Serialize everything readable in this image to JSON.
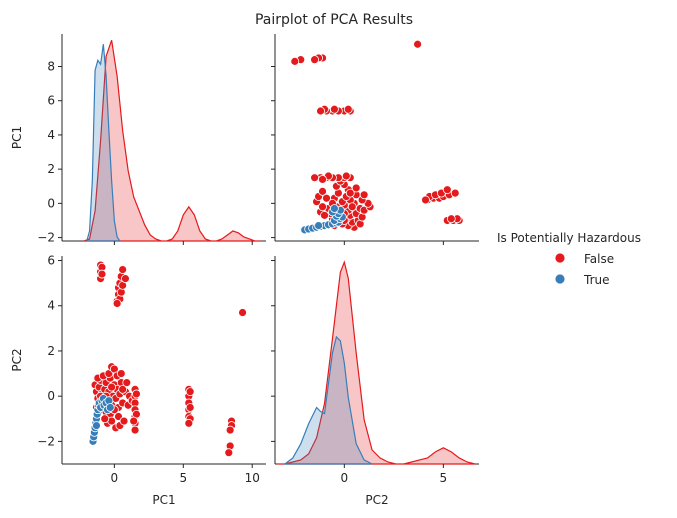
{
  "chart_data": {
    "type": "scatter",
    "title": "Pairplot of PCA Results",
    "variables": [
      "PC1",
      "PC2"
    ],
    "hue": "Is Potentially Hazardous",
    "legend": {
      "title": "Is Potentially Hazardous",
      "placement": "center-right",
      "entries": [
        {
          "label": "False",
          "color": "#e41a1c"
        },
        {
          "label": "True",
          "color": "#377eb8"
        }
      ]
    },
    "axes": {
      "PC1": {
        "lim": [
          -3.8,
          11.0
        ],
        "ticks": [
          0,
          5,
          10
        ],
        "diag_ticks": [
          -2,
          0,
          2,
          4,
          6,
          8
        ],
        "label": "PC1"
      },
      "PC2": {
        "lim": [
          -3.0,
          6.2
        ],
        "ticks": [
          -2,
          0,
          2,
          4,
          6
        ],
        "diag_ticks": [
          0,
          5
        ],
        "label": "PC2"
      },
      "PC2_x": {
        "lim": [
          -3.5,
          6.8
        ],
        "ticks": [
          0,
          5
        ],
        "label": "PC2"
      },
      "PC1_y": {
        "lim": [
          -2.2,
          9.9
        ],
        "ticks": [
          -2,
          0,
          2,
          4,
          6,
          8
        ],
        "label": "PC1"
      }
    },
    "grid": false,
    "series": [
      {
        "name": "False",
        "color": "#e41a1c",
        "points": [
          [
            -1.4,
            0.5
          ],
          [
            -1.3,
            0.2
          ],
          [
            -1.2,
            -0.1
          ],
          [
            -1.1,
            0.4
          ],
          [
            -1.0,
            0.7
          ],
          [
            -0.9,
            0.1
          ],
          [
            -0.8,
            -0.3
          ],
          [
            -0.7,
            0.3
          ],
          [
            -0.6,
            0.6
          ],
          [
            -0.5,
            -0.2
          ],
          [
            -0.4,
            0.2
          ],
          [
            -0.3,
            0.8
          ],
          [
            -0.2,
            -0.4
          ],
          [
            -0.1,
            0.0
          ],
          [
            0.0,
            0.5
          ],
          [
            0.1,
            -0.1
          ],
          [
            0.2,
            0.3
          ],
          [
            0.3,
            -0.5
          ],
          [
            0.4,
            0.1
          ],
          [
            0.5,
            0.6
          ],
          [
            -1.3,
            -0.5
          ],
          [
            -1.1,
            -0.4
          ],
          [
            -0.9,
            -0.6
          ],
          [
            -0.6,
            -0.7
          ],
          [
            -0.3,
            -0.8
          ],
          [
            0.0,
            -0.6
          ],
          [
            0.3,
            -0.9
          ],
          [
            0.6,
            -0.3
          ],
          [
            0.8,
            0.2
          ],
          [
            1.0,
            -0.4
          ],
          [
            -1.2,
            0.8
          ],
          [
            -0.8,
            0.9
          ],
          [
            -0.4,
            1.0
          ],
          [
            -0.2,
            1.3
          ],
          [
            0.0,
            1.2
          ],
          [
            0.2,
            0.9
          ],
          [
            0.5,
            1.0
          ],
          [
            0.9,
            0.6
          ],
          [
            1.1,
            0.0
          ],
          [
            1.3,
            -0.2
          ],
          [
            -0.5,
            -1.2
          ],
          [
            -0.2,
            -1.1
          ],
          [
            0.1,
            -1.4
          ],
          [
            0.4,
            -1.3
          ],
          [
            -0.7,
            -1.0
          ],
          [
            0.7,
            -1.1
          ],
          [
            -1.0,
            0.0
          ],
          [
            -0.6,
            0.0
          ],
          [
            -0.2,
            0.4
          ],
          [
            0.6,
            0.3
          ],
          [
            1.5,
            0.3
          ],
          [
            1.5,
            0.0
          ],
          [
            1.5,
            -0.3
          ],
          [
            1.5,
            -0.6
          ],
          [
            1.5,
            -0.9
          ],
          [
            1.5,
            -1.2
          ],
          [
            1.5,
            -1.5
          ],
          [
            1.6,
            0.1
          ],
          [
            1.6,
            -0.8
          ],
          [
            1.4,
            -1.1
          ],
          [
            -1.0,
            5.8
          ],
          [
            -1.0,
            5.5
          ],
          [
            -1.0,
            5.2
          ],
          [
            -0.9,
            5.7
          ],
          [
            -0.9,
            5.4
          ],
          [
            0.2,
            4.2
          ],
          [
            0.3,
            4.5
          ],
          [
            0.3,
            4.8
          ],
          [
            0.4,
            5.0
          ],
          [
            0.4,
            4.3
          ],
          [
            0.5,
            5.3
          ],
          [
            0.5,
            4.6
          ],
          [
            0.6,
            5.6
          ],
          [
            0.6,
            4.9
          ],
          [
            0.8,
            5.2
          ],
          [
            0.2,
            4.1
          ],
          [
            5.4,
            0.3
          ],
          [
            5.4,
            0.0
          ],
          [
            5.4,
            -0.3
          ],
          [
            5.4,
            -0.6
          ],
          [
            5.4,
            -0.9
          ],
          [
            5.5,
            0.2
          ],
          [
            5.5,
            -0.5
          ],
          [
            5.5,
            -1.0
          ],
          [
            5.4,
            -1.2
          ],
          [
            8.5,
            -1.1
          ],
          [
            8.5,
            -1.3
          ],
          [
            8.4,
            -1.5
          ],
          [
            8.4,
            -2.2
          ],
          [
            8.3,
            -2.5
          ],
          [
            9.3,
            3.7
          ]
        ]
      },
      {
        "name": "True",
        "color": "#377eb8",
        "points": [
          [
            -1.55,
            -2.0
          ],
          [
            -1.5,
            -1.8
          ],
          [
            -1.45,
            -1.6
          ],
          [
            -1.4,
            -1.4
          ],
          [
            -1.35,
            -1.2
          ],
          [
            -1.3,
            -1.0
          ],
          [
            -1.25,
            -0.8
          ],
          [
            -1.2,
            -0.6
          ],
          [
            -1.15,
            -0.4
          ],
          [
            -1.1,
            -0.3
          ],
          [
            -1.0,
            -0.5
          ],
          [
            -0.9,
            -0.2
          ],
          [
            -0.8,
            -0.1
          ],
          [
            -0.75,
            -0.4
          ],
          [
            -0.6,
            -0.3
          ],
          [
            -0.5,
            -0.6
          ],
          [
            -0.4,
            -0.2
          ],
          [
            -0.3,
            -0.5
          ],
          [
            -1.3,
            -1.3
          ]
        ]
      }
    ],
    "kde": {
      "PC1": {
        "False": {
          "x": [
            -2.2,
            -1.8,
            -1.4,
            -1.0,
            -0.6,
            -0.2,
            0.2,
            0.6,
            1.0,
            1.4,
            1.8,
            2.2,
            2.6,
            3.0,
            3.4,
            3.8,
            4.2,
            4.6,
            5.0,
            5.4,
            5.8,
            6.2,
            6.6,
            7.0,
            7.4,
            7.8,
            8.2,
            8.6,
            9.0,
            9.4,
            9.8,
            10.2,
            10.6
          ],
          "density": [
            0.0,
            0.01,
            0.15,
            0.5,
            0.92,
            1.0,
            0.82,
            0.55,
            0.35,
            0.22,
            0.15,
            0.08,
            0.03,
            0.01,
            0.0,
            0.0,
            0.01,
            0.05,
            0.13,
            0.17,
            0.13,
            0.05,
            0.01,
            0.0,
            0.0,
            0.01,
            0.03,
            0.05,
            0.04,
            0.02,
            0.01,
            0.0,
            0.0
          ]
        },
        "True": {
          "x": [
            -2.0,
            -1.8,
            -1.6,
            -1.4,
            -1.2,
            -1.0,
            -0.8,
            -0.6,
            -0.4,
            -0.2,
            0.0,
            0.2,
            0.4
          ],
          "density": [
            0.0,
            0.05,
            0.3,
            0.85,
            0.9,
            0.88,
            0.98,
            0.82,
            0.55,
            0.3,
            0.1,
            0.02,
            0.0
          ]
        }
      },
      "PC2": {
        "False": {
          "x": [
            -3.4,
            -3.0,
            -2.6,
            -2.2,
            -1.8,
            -1.4,
            -1.0,
            -0.6,
            -0.2,
            0.0,
            0.2,
            0.6,
            1.0,
            1.4,
            1.8,
            2.2,
            2.6,
            3.0,
            3.4,
            3.8,
            4.2,
            4.6,
            5.0,
            5.4,
            5.8,
            6.2,
            6.6
          ],
          "density": [
            0.0,
            0.0,
            0.01,
            0.02,
            0.05,
            0.13,
            0.3,
            0.62,
            0.95,
            1.0,
            0.92,
            0.55,
            0.22,
            0.07,
            0.03,
            0.01,
            0.0,
            0.0,
            0.01,
            0.02,
            0.03,
            0.06,
            0.08,
            0.06,
            0.03,
            0.01,
            0.0
          ]
        },
        "True": {
          "x": [
            -3.0,
            -2.6,
            -2.2,
            -1.8,
            -1.4,
            -1.2,
            -1.0,
            -0.8,
            -0.6,
            -0.4,
            -0.2,
            0.0,
            0.2,
            0.6,
            1.0,
            1.4
          ],
          "density": [
            0.0,
            0.03,
            0.1,
            0.2,
            0.28,
            0.26,
            0.25,
            0.4,
            0.55,
            0.63,
            0.61,
            0.5,
            0.33,
            0.1,
            0.02,
            0.0
          ]
        }
      }
    }
  }
}
